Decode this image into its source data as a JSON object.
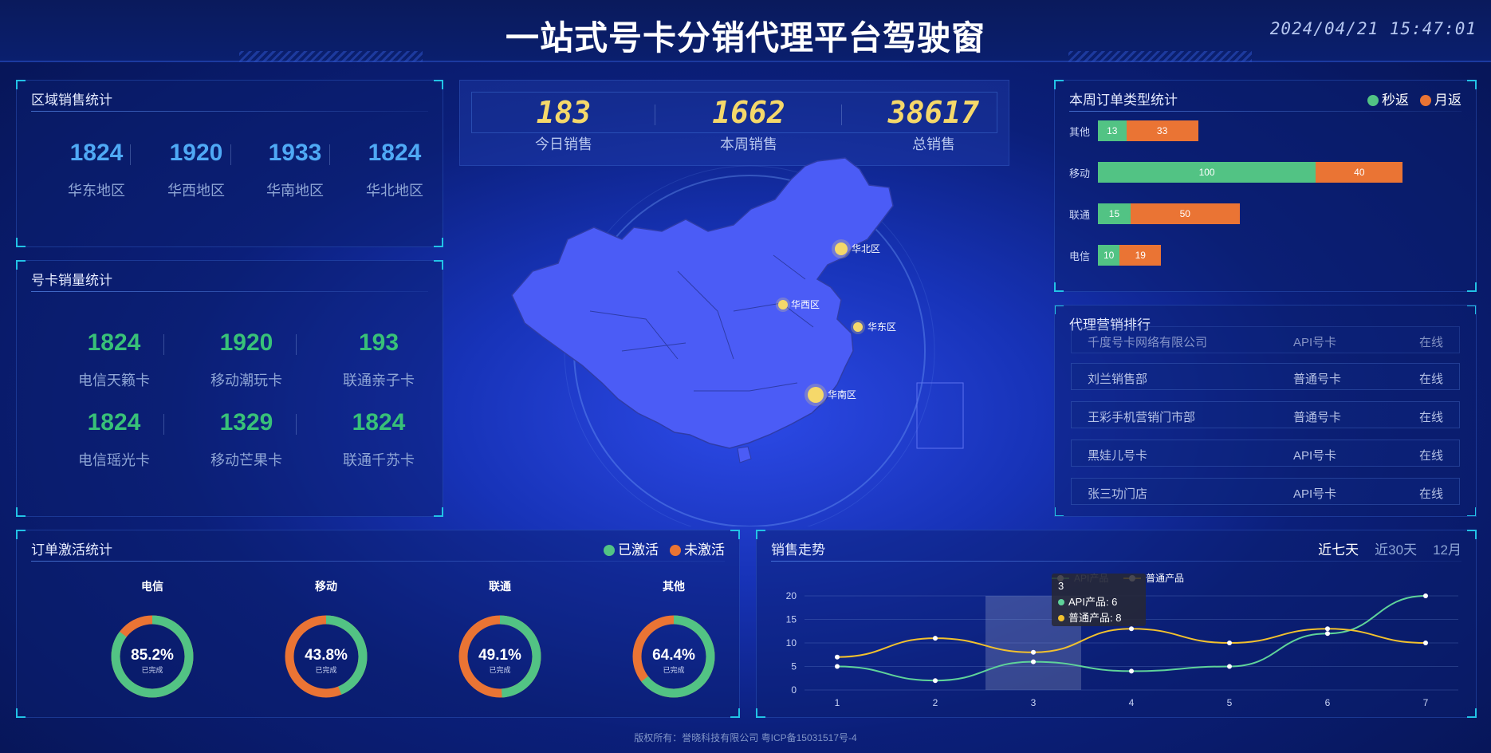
{
  "header": {
    "title": "一站式号卡分销代理平台驾驶窗",
    "time": "2024/04/21 15:47:01"
  },
  "region_sales": {
    "title": "区域销售统计",
    "items": [
      {
        "value": "1824",
        "label": "华东地区"
      },
      {
        "value": "1920",
        "label": "华西地区"
      },
      {
        "value": "1933",
        "label": "华南地区"
      },
      {
        "value": "1824",
        "label": "华北地区"
      }
    ]
  },
  "card_sales": {
    "title": "号卡销量统计",
    "items": [
      {
        "value": "1824",
        "label": "电信天籁卡"
      },
      {
        "value": "1920",
        "label": "移动潮玩卡"
      },
      {
        "value": "193",
        "label": "联通亲子卡"
      },
      {
        "value": "1824",
        "label": "电信瑶光卡"
      },
      {
        "value": "1329",
        "label": "移动芒果卡"
      },
      {
        "value": "1824",
        "label": "联通千苏卡"
      }
    ]
  },
  "summary": {
    "items": [
      {
        "value": "183",
        "label": "今日销售"
      },
      {
        "value": "1662",
        "label": "本周销售"
      },
      {
        "value": "38617",
        "label": "总销售"
      }
    ]
  },
  "map": {
    "fill_color": "#4b5cf6",
    "markers": [
      {
        "label": "华北区"
      },
      {
        "label": "华西区"
      },
      {
        "label": "华东区"
      },
      {
        "label": "华南区"
      }
    ]
  },
  "order_types": {
    "title": "本周订单类型统计",
    "legend": [
      {
        "name": "秒返",
        "color": "#52c384"
      },
      {
        "name": "月返",
        "color": "#ea7434"
      }
    ],
    "max": 140,
    "rows": [
      {
        "label": "其他",
        "a": 13,
        "b": 33
      },
      {
        "label": "移动",
        "a": 100,
        "b": 40
      },
      {
        "label": "联通",
        "a": 15,
        "b": 50
      },
      {
        "label": "电信",
        "a": 10,
        "b": 19
      }
    ]
  },
  "ranking": {
    "title": "代理营销排行",
    "rows": [
      {
        "name": "千度号卡网络有限公司",
        "type": "API号卡",
        "status": "在线"
      },
      {
        "name": "刘兰销售部",
        "type": "普通号卡",
        "status": "在线"
      },
      {
        "name": "王彩手机营销门市部",
        "type": "普通号卡",
        "status": "在线"
      },
      {
        "name": "黑娃儿号卡",
        "type": "API号卡",
        "status": "在线"
      },
      {
        "name": "张三功门店",
        "type": "API号卡",
        "status": "在线"
      }
    ]
  },
  "activation": {
    "title": "订单激活统计",
    "legend": [
      {
        "name": "已激活",
        "color": "#52c384"
      },
      {
        "name": "未激活",
        "color": "#ea7434"
      }
    ],
    "items": [
      {
        "name": "电信",
        "percent": 85.2,
        "text": "85.2%",
        "sub": "已完成"
      },
      {
        "name": "移动",
        "percent": 43.8,
        "text": "43.8%",
        "sub": "已完成"
      },
      {
        "name": "联通",
        "percent": 49.1,
        "text": "49.1%",
        "sub": "已完成"
      },
      {
        "name": "其他",
        "percent": 64.4,
        "text": "64.4%",
        "sub": "已完成"
      }
    ]
  },
  "trend": {
    "title": "销售走势",
    "tabs": [
      "近七天",
      "近30天",
      "12月"
    ],
    "active_tab": 0,
    "tooltip": {
      "title": "3",
      "line1": "API产品: 6",
      "line2": "普通产品: 8"
    }
  },
  "chart_data": {
    "type": "line",
    "x": [
      1,
      2,
      3,
      4,
      5,
      6,
      7
    ],
    "ylim": [
      0,
      20
    ],
    "yticks": [
      0,
      5,
      10,
      15,
      20
    ],
    "series": [
      {
        "name": "API产品",
        "color": "#5fd39a",
        "values": [
          5,
          2,
          6,
          4,
          5,
          12,
          20
        ]
      },
      {
        "name": "普通产品",
        "color": "#f2c12e",
        "values": [
          7,
          11,
          8,
          13,
          10,
          13,
          10
        ]
      }
    ],
    "legend_placement": "top"
  },
  "footer": {
    "text": "版权所有：誉晓科技有限公司 粤ICP备15031517号-4"
  }
}
